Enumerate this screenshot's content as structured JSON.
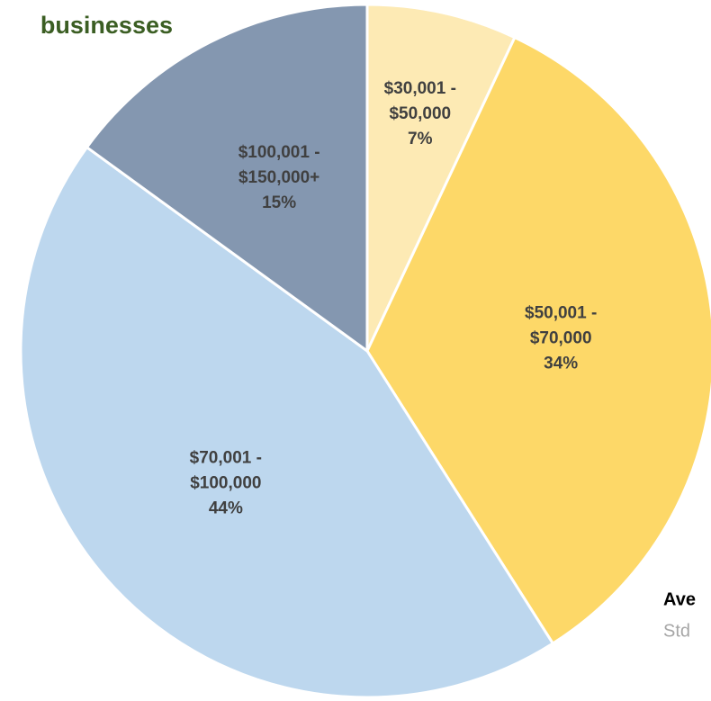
{
  "chart_data": {
    "type": "pie",
    "title": "businesses",
    "categories": [
      [
        "$30,001 -",
        "$50,000"
      ],
      [
        "$50,001 -",
        "$70,000"
      ],
      [
        "$70,001 -",
        "$100,000"
      ],
      [
        "$100,001 -",
        "$150,000+"
      ]
    ],
    "values": [
      7,
      34,
      44,
      15
    ],
    "value_labels": [
      "7%",
      "34%",
      "44%",
      "15%"
    ],
    "colors": [
      "#fdeab4",
      "#fdd868",
      "#bdd7ee",
      "#8497b0"
    ],
    "annotations": [
      "Ave",
      "Std"
    ]
  }
}
